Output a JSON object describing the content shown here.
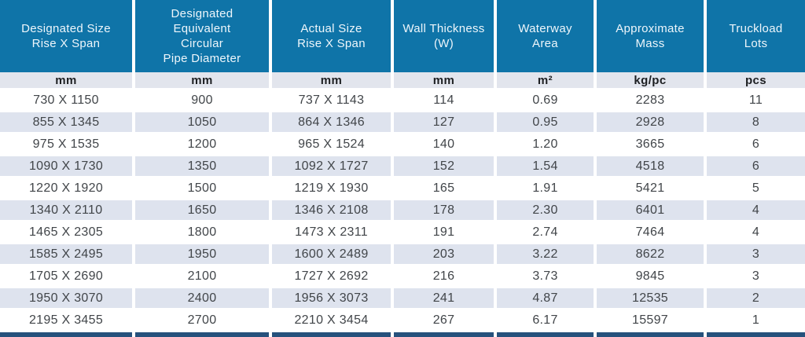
{
  "table": {
    "headers": [
      "Designated Size\nRise X Span",
      "Designated\nEquivalent\nCircular\nPipe Diameter",
      "Actual Size\nRise X Span",
      "Wall Thickness\n(W)",
      "Waterway\nArea",
      "Approximate\nMass",
      "Truckload\nLots"
    ],
    "units": [
      "mm",
      "mm",
      "mm",
      "mm",
      "m²",
      "kg/pc",
      "pcs"
    ],
    "rows": [
      [
        "730 X 1150",
        "900",
        "737 X 1143",
        "114",
        "0.69",
        "2283",
        "11"
      ],
      [
        "855 X 1345",
        "1050",
        "864 X 1346",
        "127",
        "0.95",
        "2928",
        "8"
      ],
      [
        "975 X 1535",
        "1200",
        "965 X 1524",
        "140",
        "1.20",
        "3665",
        "6"
      ],
      [
        "1090 X 1730",
        "1350",
        "1092 X 1727",
        "152",
        "1.54",
        "4518",
        "6"
      ],
      [
        "1220 X 1920",
        "1500",
        "1219 X 1930",
        "165",
        "1.91",
        "5421",
        "5"
      ],
      [
        "1340 X 2110",
        "1650",
        "1346 X 2108",
        "178",
        "2.30",
        "6401",
        "4"
      ],
      [
        "1465 X 2305",
        "1800",
        "1473 X 2311",
        "191",
        "2.74",
        "7464",
        "4"
      ],
      [
        "1585 X 2495",
        "1950",
        "1600 X 2489",
        "203",
        "3.22",
        "8622",
        "3"
      ],
      [
        "1705 X 2690",
        "2100",
        "1727 X 2692",
        "216",
        "3.73",
        "9845",
        "3"
      ],
      [
        "1950 X 3070",
        "2400",
        "1956 X 3073",
        "241",
        "4.87",
        "12535",
        "2"
      ],
      [
        "2195 X 3455",
        "2700",
        "2210 X 3454",
        "267",
        "6.17",
        "15597",
        "1"
      ]
    ]
  },
  "colors": {
    "header_blue": "#0f74a8",
    "header_text": "#eef6fb",
    "units_bg": "#e2e5ed",
    "stripe_bg": "#dee3ee",
    "text_dark": "#414549",
    "footer_navy": "#26517c"
  },
  "chart_data": {
    "type": "table",
    "columns": [
      {
        "label": "Designated Size Rise X Span",
        "unit": "mm"
      },
      {
        "label": "Designated Equivalent Circular Pipe Diameter",
        "unit": "mm"
      },
      {
        "label": "Actual Size Rise X Span",
        "unit": "mm"
      },
      {
        "label": "Wall Thickness (W)",
        "unit": "mm"
      },
      {
        "label": "Waterway Area",
        "unit": "m²"
      },
      {
        "label": "Approximate Mass",
        "unit": "kg/pc"
      },
      {
        "label": "Truckload Lots",
        "unit": "pcs"
      }
    ]
  }
}
